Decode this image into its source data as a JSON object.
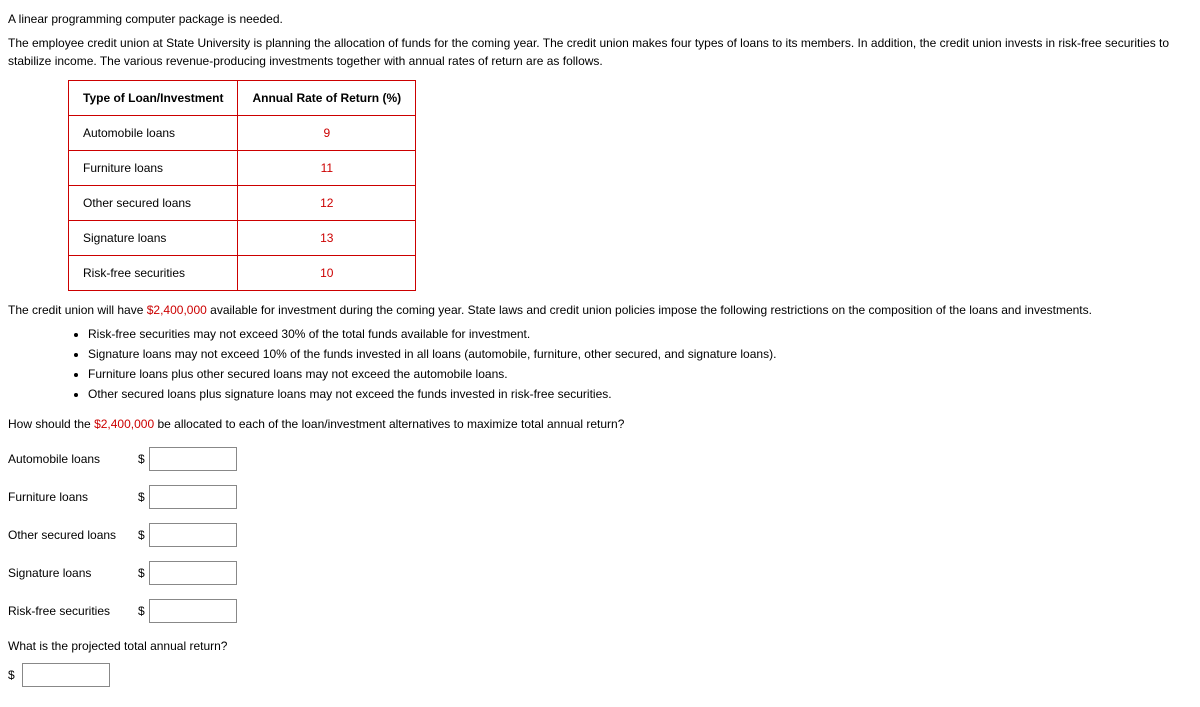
{
  "intro_line": "A linear programming computer package is needed.",
  "description": "The employee credit union at State University is planning the allocation of funds for the coming year. The credit union makes four types of loans to its members. In addition, the credit union invests in risk-free securities to stabilize income. The various revenue-producing investments together with annual rates of return are as follows.",
  "table": {
    "headers": [
      "Type of Loan/Investment",
      "Annual Rate of Return (%)"
    ],
    "rows": [
      {
        "name": "Automobile loans",
        "rate": "9"
      },
      {
        "name": "Furniture loans",
        "rate": "11"
      },
      {
        "name": "Other secured loans",
        "rate": "12"
      },
      {
        "name": "Signature loans",
        "rate": "13"
      },
      {
        "name": "Risk-free securities",
        "rate": "10"
      }
    ]
  },
  "middle_pre": "The credit union will have ",
  "amount1": "$2,400,000",
  "middle_post": " available for investment during the coming year. State laws and credit union policies impose the following restrictions on the composition of the loans and investments.",
  "constraints": [
    "Risk-free securities may not exceed 30% of the total funds available for investment.",
    "Signature loans may not exceed 10% of the funds invested in all loans (automobile, furniture, other secured, and signature loans).",
    "Furniture loans plus other secured loans may not exceed the automobile loans.",
    "Other secured loans plus signature loans may not exceed the funds invested in risk-free securities."
  ],
  "question_pre": "How should the ",
  "amount2": "$2,400,000",
  "question_post": " be allocated to each of the loan/investment alternatives to maximize total annual return?",
  "inputs": [
    {
      "label": "Automobile loans"
    },
    {
      "label": "Furniture loans"
    },
    {
      "label": "Other secured loans"
    },
    {
      "label": "Signature loans"
    },
    {
      "label": "Risk-free securities"
    }
  ],
  "final_question": "What is the projected total annual return?",
  "dollar": "$"
}
